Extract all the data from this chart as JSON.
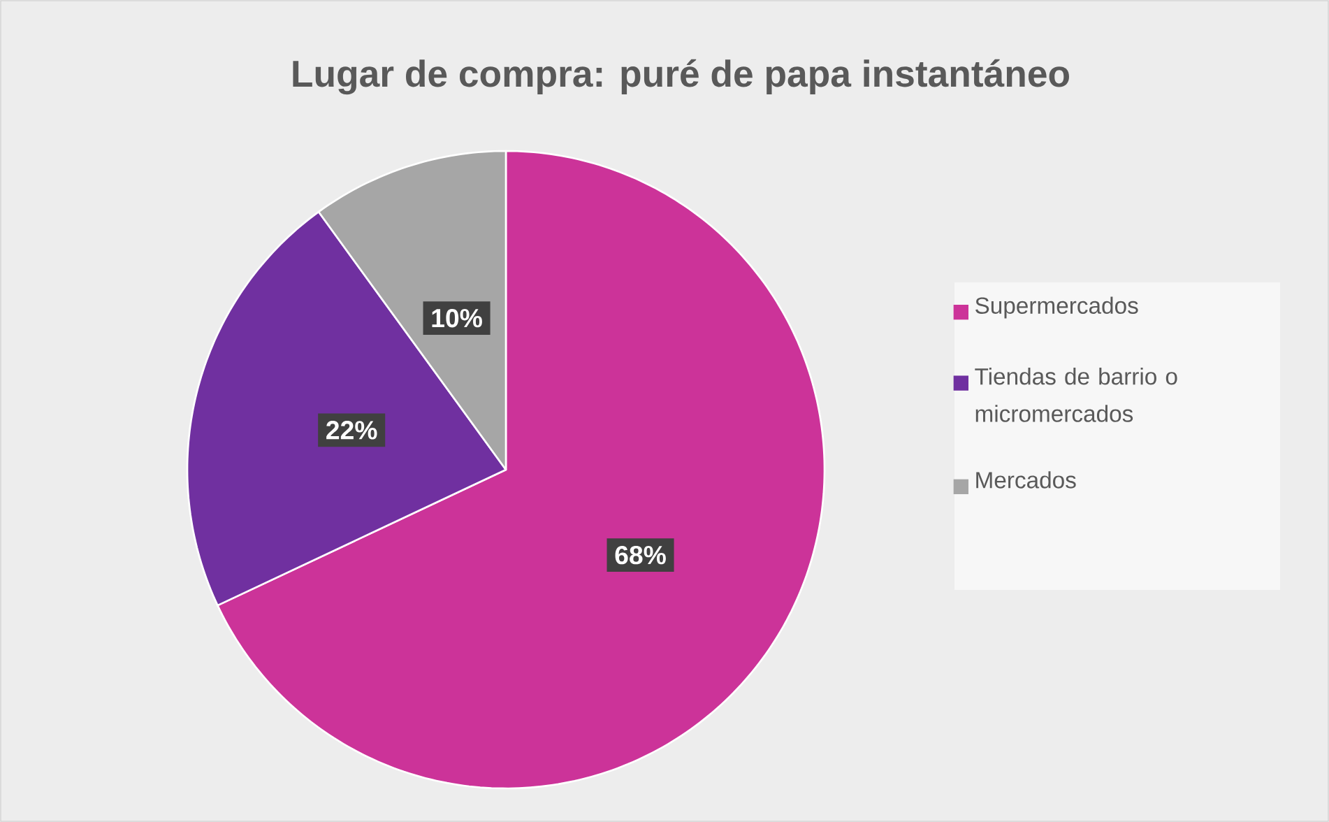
{
  "chart_data": {
    "type": "pie",
    "title": "Lugar de compra: puré de papa instantáneo",
    "categories": [
      "Supermercados",
      "Tiendas de barrio o micromercados",
      "Mercados"
    ],
    "values": [
      68,
      22,
      10
    ],
    "colors": [
      "#cc3399",
      "#7030a0",
      "#a6a6a6"
    ],
    "value_labels": [
      "68%",
      "22%",
      "10%"
    ],
    "legend": "right"
  }
}
